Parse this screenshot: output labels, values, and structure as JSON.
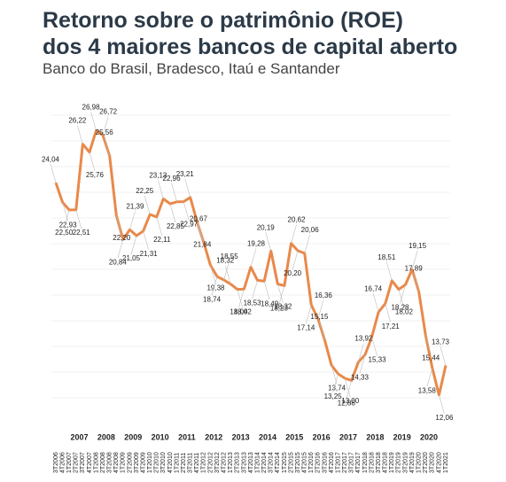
{
  "chart_data": {
    "type": "line",
    "title": "Retorno sobre o patrimônio (ROE)",
    "title_line2": "dos 4 maiores bancos de capital aberto",
    "subtitle": "Banco do Brasil, Bradesco, Itaú e Santander",
    "categories": [
      "3T2006",
      "4T2006",
      "1T2007",
      "2T2007",
      "3T2007",
      "4T2007",
      "1T2008",
      "2T2008",
      "3T2008",
      "4T2008",
      "1T2009",
      "2T2009",
      "3T2009",
      "4T2009",
      "1T2010",
      "2T2010",
      "3T2010",
      "4T2010",
      "1T2011",
      "2T2011",
      "3T2011",
      "4T2011",
      "1T2012",
      "2T2012",
      "3T2012",
      "4T2012",
      "1T2013",
      "2T2013",
      "3T2013",
      "4T2013",
      "1T2014",
      "2T2014",
      "3T2014",
      "4T2014",
      "1T2015",
      "2T2015",
      "3T2015",
      "4T2015",
      "1T2016",
      "2T2016",
      "3T2016",
      "4T2016",
      "1T2017",
      "2T2017",
      "3T2017",
      "4T2017",
      "1T2018",
      "2T2018",
      "3T2018",
      "4T2018",
      "1T2019",
      "2T2019",
      "3T2019",
      "4T2019",
      "1T2020",
      "2T2020",
      "3T2020",
      "4T2020",
      "1T2021"
    ],
    "years": [
      "2007",
      "2008",
      "2009",
      "2010",
      "2011",
      "2012",
      "2013",
      "2014",
      "2015",
      "2016",
      "2017",
      "2018",
      "2019",
      "2020"
    ],
    "series": [
      {
        "color": "#e8894a",
        "values": [
          24.04,
          22.93,
          22.5,
          22.51,
          26.22,
          25.76,
          26.98,
          26.72,
          25.56,
          22.2,
          20.84,
          21.39,
          21.05,
          21.31,
          22.25,
          22.11,
          23.13,
          22.85,
          22.96,
          22.97,
          23.21,
          21.84,
          20.67,
          19.38,
          18.74,
          18.55,
          18.32,
          18.02,
          18.04,
          19.28,
          18.53,
          18.49,
          20.19,
          18.32,
          18.23,
          20.62,
          20.2,
          20.06,
          17.14,
          16.36,
          15.15,
          13.74,
          13.25,
          13.0,
          12.88,
          13.92,
          14.33,
          15.33,
          16.74,
          17.21,
          18.51,
          18.02,
          18.28,
          19.15,
          17.89,
          15.44,
          13.58,
          12.06,
          13.73
        ],
        "value_labels": [
          "24,04",
          "22,93",
          "22,50",
          "22,51",
          "26,22",
          "25,76",
          "26,98",
          "26,72",
          "25,56",
          "22,20",
          "20,84",
          "21,39",
          "21,05",
          "21,31",
          "22,25",
          "22,11",
          "23,13",
          "22,85",
          "22,96",
          "22,97",
          "23,21",
          "21,84",
          "20,67",
          "19,38",
          "18,74",
          "18,55",
          "18,32",
          "18,02",
          "18,04",
          "19,28",
          "18,53",
          "18,49",
          "20,19",
          "18,32",
          "18,23",
          "20,62",
          "20,20",
          "20,06",
          "17,14",
          "16,36",
          "15,15",
          "13,74",
          "13,25",
          "13,00",
          "12,88",
          "13,92",
          "14,33",
          "15,33",
          "16,74",
          "17,21",
          "18,51",
          "18,02",
          "18,28",
          "19,15",
          "17,89",
          "15,44",
          "13,58",
          "12,06",
          "13,73"
        ]
      }
    ],
    "ylim": [
      11,
      29
    ]
  }
}
